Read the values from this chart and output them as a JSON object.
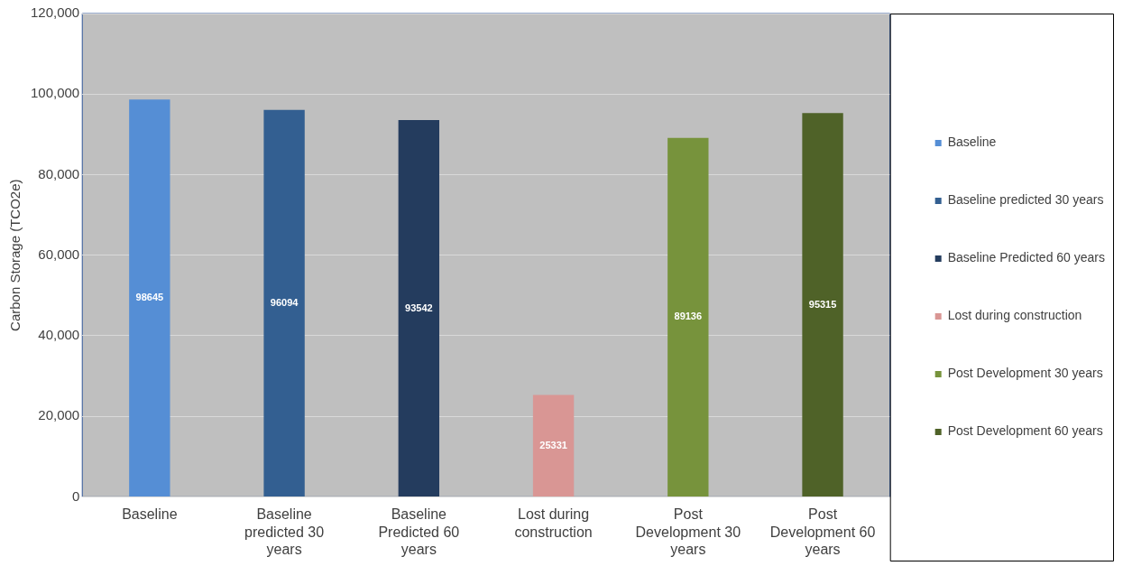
{
  "chart_data": {
    "type": "bar",
    "ylabel": "Carbon Storage (TCO2e)",
    "categories": [
      "Baseline",
      "Baseline predicted 30 years",
      "Baseline Predicted 60 years",
      "Lost during construction",
      "Post Development 30 years",
      "Post Development 60 years"
    ],
    "series": [
      {
        "name": "Baseline",
        "color": "#558ed5",
        "values": [
          98645,
          null,
          null,
          null,
          null,
          null
        ]
      },
      {
        "name": "Baseline predicted 30 years",
        "color": "#335f91",
        "values": [
          null,
          96094,
          null,
          null,
          null,
          null
        ]
      },
      {
        "name": "Baseline Predicted 60 years",
        "color": "#243c5e",
        "values": [
          null,
          null,
          93542,
          null,
          null,
          null
        ]
      },
      {
        "name": "Lost during construction",
        "color": "#d99694",
        "values": [
          null,
          null,
          null,
          25331,
          null,
          null
        ]
      },
      {
        "name": "Post Development 30 years",
        "color": "#77933c",
        "values": [
          null,
          null,
          null,
          null,
          89136,
          null
        ]
      },
      {
        "name": "Post Development 60 years",
        "color": "#4f6228",
        "values": [
          null,
          null,
          null,
          null,
          null,
          95315
        ]
      }
    ],
    "ylim": [
      0,
      120000
    ],
    "yticks": [
      {
        "value": 0,
        "label": "0"
      },
      {
        "value": 20000,
        "label": "20,000"
      },
      {
        "value": 40000,
        "label": "40,000"
      },
      {
        "value": 60000,
        "label": "60,000"
      },
      {
        "value": 80000,
        "label": "80,000"
      },
      {
        "value": 100000,
        "label": "100,000"
      },
      {
        "value": 120000,
        "label": "120,000"
      }
    ],
    "grid": "y",
    "legend": "right",
    "data_labels": true
  }
}
